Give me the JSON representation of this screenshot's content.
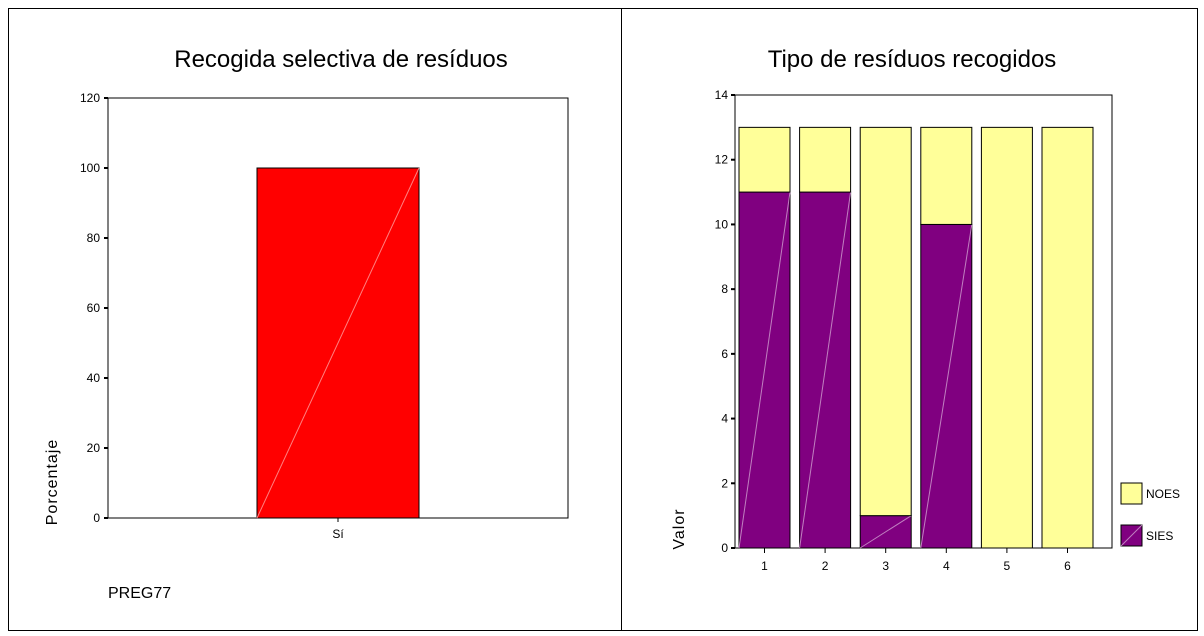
{
  "chart_data": [
    {
      "type": "bar",
      "title": "Recogida selectiva de resíduos",
      "categories": [
        "Sí"
      ],
      "values": [
        100
      ],
      "ylabel": "Porcentaje",
      "xlabel": "PREG77",
      "ylim": [
        0,
        120
      ],
      "yticks": [
        0,
        20,
        40,
        60,
        80,
        100,
        120
      ],
      "bar_color": "#ff0000"
    },
    {
      "type": "bar",
      "stacked": true,
      "title": "Tipo de resíduos recogidos",
      "categories": [
        "1",
        "2",
        "3",
        "4",
        "5",
        "6"
      ],
      "ylabel": "Valor",
      "ylim": [
        0,
        14
      ],
      "yticks": [
        0,
        2,
        4,
        6,
        8,
        10,
        12,
        14
      ],
      "legend_position": "right",
      "series": [
        {
          "name": "SIES",
          "values": [
            11,
            11,
            1,
            10,
            0,
            0
          ],
          "color": "#800080"
        },
        {
          "name": "NOES",
          "values": [
            2,
            2,
            12,
            3,
            13,
            13
          ],
          "color": "#ffff99"
        }
      ]
    }
  ]
}
